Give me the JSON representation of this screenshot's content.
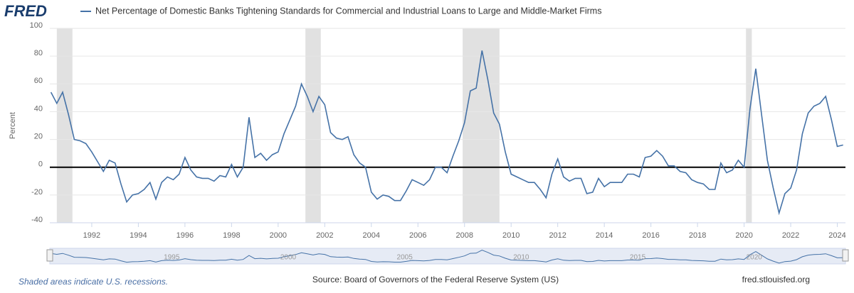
{
  "brand": "FRED",
  "footer": {
    "note": "Shaded areas indicate U.S. recessions.",
    "source": "Source: Board of Governors of the Federal Reserve System (US)",
    "site": "fred.stlouisfed.org"
  },
  "chart_data": {
    "type": "line",
    "y_label": "Percent",
    "x": [
      1990.25,
      1990.5,
      1990.75,
      1991,
      1991.25,
      1991.5,
      1991.75,
      1992,
      1992.25,
      1992.5,
      1992.75,
      1993,
      1993.25,
      1993.5,
      1993.75,
      1994,
      1994.25,
      1994.5,
      1994.75,
      1995,
      1995.25,
      1995.5,
      1995.75,
      1996,
      1996.25,
      1996.5,
      1996.75,
      1997,
      1997.25,
      1997.5,
      1997.75,
      1998,
      1998.25,
      1998.5,
      1998.75,
      1999,
      1999.25,
      1999.5,
      1999.75,
      2000,
      2000.25,
      2000.5,
      2000.75,
      2001,
      2001.25,
      2001.5,
      2001.75,
      2002,
      2002.25,
      2002.5,
      2002.75,
      2003,
      2003.25,
      2003.5,
      2003.75,
      2004,
      2004.25,
      2004.5,
      2004.75,
      2005,
      2005.25,
      2005.5,
      2005.75,
      2006,
      2006.25,
      2006.5,
      2006.75,
      2007,
      2007.25,
      2007.5,
      2007.75,
      2008,
      2008.25,
      2008.5,
      2008.75,
      2009,
      2009.25,
      2009.5,
      2009.75,
      2010,
      2010.25,
      2010.5,
      2010.75,
      2011,
      2011.25,
      2011.5,
      2011.75,
      2012,
      2012.25,
      2012.5,
      2012.75,
      2013,
      2013.25,
      2013.5,
      2013.75,
      2014,
      2014.25,
      2014.5,
      2014.75,
      2015,
      2015.25,
      2015.5,
      2015.75,
      2016,
      2016.25,
      2016.5,
      2016.75,
      2017,
      2017.25,
      2017.5,
      2017.75,
      2018,
      2018.25,
      2018.5,
      2018.75,
      2019,
      2019.25,
      2019.5,
      2019.75,
      2020,
      2020.25,
      2020.5,
      2020.75,
      2021,
      2021.25,
      2021.5,
      2021.75,
      2022,
      2022.25,
      2022.5,
      2022.75,
      2023,
      2023.25,
      2023.5,
      2023.75,
      2024,
      2024.25
    ],
    "series": [
      {
        "name": "Net Percentage of Domestic Banks Tightening Standards for Commercial and Industrial Loans to Large and Middle-Market Firms",
        "color": "#4572a7",
        "values": [
          54,
          46,
          54,
          38,
          20,
          19,
          17,
          11,
          4,
          -3,
          5,
          3,
          -12,
          -25,
          -20,
          -19,
          -16,
          -11,
          -23,
          -11,
          -7,
          -9,
          -5,
          7,
          -2,
          -7,
          -8,
          -8,
          -10,
          -6,
          -7,
          2,
          -7,
          0,
          36,
          7,
          10,
          5,
          9,
          11,
          24,
          34,
          44,
          60,
          51,
          40,
          51,
          45,
          25,
          21,
          20,
          22,
          9,
          3,
          0,
          -18,
          -23,
          -20,
          -21,
          -24,
          -24,
          -17,
          -9,
          -11,
          -13,
          -9,
          0,
          0,
          -4,
          8,
          19,
          32,
          55,
          57,
          84,
          63,
          39,
          31,
          11,
          -5,
          -7,
          -9,
          -11,
          -11,
          -16,
          -22,
          -5,
          6,
          -7,
          -10,
          -8,
          -8,
          -19,
          -18,
          -8,
          -14,
          -11,
          -11,
          -11,
          -5,
          -5,
          -7,
          7,
          8,
          12,
          8,
          1,
          1,
          -3,
          -4,
          -9,
          -11,
          -12,
          -16,
          -16,
          3,
          -4,
          -2,
          5,
          0,
          42,
          71,
          38,
          5,
          -15,
          -33,
          -19,
          -15,
          -2,
          24,
          39,
          44,
          46,
          51,
          34,
          15,
          16
        ]
      }
    ],
    "recessions": [
      [
        1990.5,
        1991.17
      ],
      [
        2001.17,
        2001.83
      ],
      [
        2007.92,
        2009.5
      ],
      [
        2020.08,
        2020.33
      ]
    ],
    "xlim": [
      1990.2,
      2024.35
    ],
    "xticks": [
      1992,
      1994,
      1996,
      1998,
      2000,
      2002,
      2004,
      2006,
      2008,
      2010,
      2012,
      2014,
      2016,
      2018,
      2020,
      2022,
      2024
    ],
    "ylim": [
      -40,
      100
    ],
    "yticks": [
      -40,
      -20,
      0,
      20,
      40,
      60,
      80,
      100
    ],
    "grid": true,
    "navigator_ticks": [
      1995,
      2000,
      2005,
      2010,
      2015,
      2020
    ]
  }
}
